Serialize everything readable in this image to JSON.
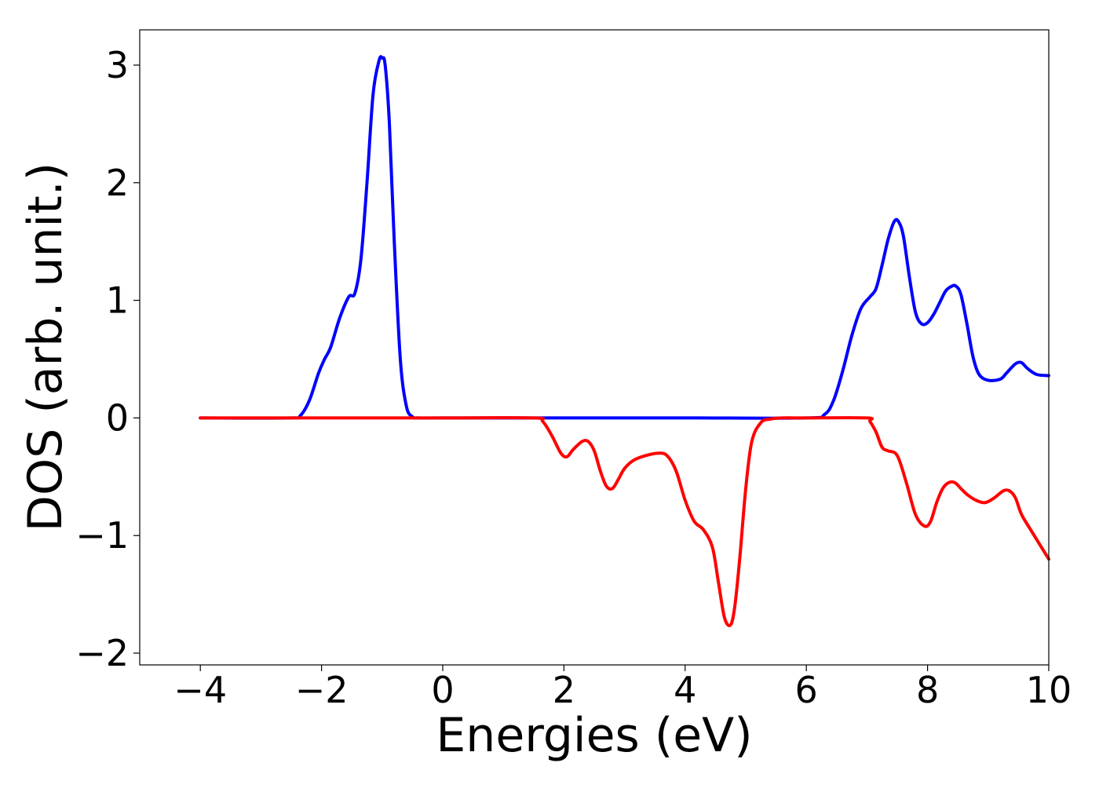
{
  "chart_data": {
    "type": "line",
    "title": "",
    "xlabel": "Energies (eV)",
    "ylabel": "DOS (arb. unit.)",
    "xlim": [
      -5,
      10
    ],
    "ylim": [
      -2.1,
      3.3
    ],
    "xticks": [
      -4,
      -2,
      0,
      2,
      4,
      6,
      8,
      10
    ],
    "yticks": [
      -2,
      -1,
      0,
      1,
      2,
      3
    ],
    "xtick_labels": [
      "−4",
      "−2",
      "0",
      "2",
      "4",
      "6",
      "8",
      "10"
    ],
    "ytick_labels": [
      "−2",
      "−1",
      "0",
      "1",
      "2",
      "3"
    ],
    "grid": false,
    "legend": "none",
    "series": [
      {
        "color": "#0000ff",
        "x": [
          -4.0,
          -2.5,
          -2.35,
          -2.2,
          -2.05,
          -1.95,
          -1.85,
          -1.7,
          -1.55,
          -1.45,
          -1.35,
          -1.25,
          -1.15,
          -1.05,
          -1.0,
          -0.95,
          -0.88,
          -0.8,
          -0.7,
          -0.6,
          -0.5,
          -0.4,
          0.0,
          2.0,
          4.0,
          6.0,
          6.3,
          6.45,
          6.6,
          6.75,
          6.9,
          7.05,
          7.15,
          7.25,
          7.35,
          7.45,
          7.52,
          7.6,
          7.7,
          7.8,
          7.9,
          8.0,
          8.1,
          8.2,
          8.3,
          8.4,
          8.47,
          8.55,
          8.65,
          8.75,
          8.85,
          9.0,
          9.2,
          9.3,
          9.45,
          9.55,
          9.65,
          9.8,
          10.0
        ],
        "y": [
          0.0,
          0.0,
          0.02,
          0.15,
          0.38,
          0.5,
          0.6,
          0.85,
          1.03,
          1.06,
          1.35,
          2.0,
          2.75,
          3.04,
          3.06,
          3.0,
          2.5,
          1.5,
          0.5,
          0.1,
          0.01,
          0.0,
          0.0,
          0.0,
          0.0,
          0.0,
          0.03,
          0.15,
          0.4,
          0.7,
          0.93,
          1.03,
          1.1,
          1.3,
          1.52,
          1.67,
          1.67,
          1.55,
          1.2,
          0.9,
          0.8,
          0.81,
          0.88,
          0.98,
          1.08,
          1.12,
          1.12,
          1.05,
          0.8,
          0.52,
          0.37,
          0.32,
          0.33,
          0.38,
          0.46,
          0.47,
          0.42,
          0.37,
          0.36
        ]
      },
      {
        "color": "#ff0000",
        "x": [
          -4.0,
          0.0,
          1.5,
          1.65,
          1.8,
          1.95,
          2.05,
          2.15,
          2.3,
          2.4,
          2.5,
          2.6,
          2.7,
          2.8,
          2.9,
          3.0,
          3.15,
          3.35,
          3.55,
          3.7,
          3.85,
          4.0,
          4.15,
          4.3,
          4.45,
          4.55,
          4.65,
          4.75,
          4.82,
          4.9,
          5.0,
          5.1,
          5.25,
          5.4,
          5.6,
          6.0,
          7.0,
          7.05,
          7.15,
          7.25,
          7.35,
          7.5,
          7.65,
          7.8,
          7.95,
          8.05,
          8.15,
          8.25,
          8.35,
          8.45,
          8.55,
          8.65,
          8.8,
          8.95,
          9.1,
          9.25,
          9.35,
          9.45,
          9.55,
          9.7,
          10.0
        ],
        "y": [
          0.0,
          0.0,
          0.0,
          -0.03,
          -0.15,
          -0.3,
          -0.33,
          -0.27,
          -0.2,
          -0.2,
          -0.28,
          -0.45,
          -0.58,
          -0.6,
          -0.52,
          -0.43,
          -0.36,
          -0.32,
          -0.3,
          -0.32,
          -0.45,
          -0.7,
          -0.88,
          -0.95,
          -1.1,
          -1.4,
          -1.7,
          -1.76,
          -1.6,
          -1.2,
          -0.6,
          -0.2,
          -0.04,
          -0.01,
          0.0,
          0.0,
          0.0,
          -0.03,
          -0.12,
          -0.25,
          -0.28,
          -0.32,
          -0.55,
          -0.82,
          -0.92,
          -0.88,
          -0.72,
          -0.6,
          -0.55,
          -0.55,
          -0.6,
          -0.65,
          -0.7,
          -0.72,
          -0.68,
          -0.62,
          -0.62,
          -0.68,
          -0.82,
          -0.95,
          -1.2
        ]
      }
    ]
  }
}
